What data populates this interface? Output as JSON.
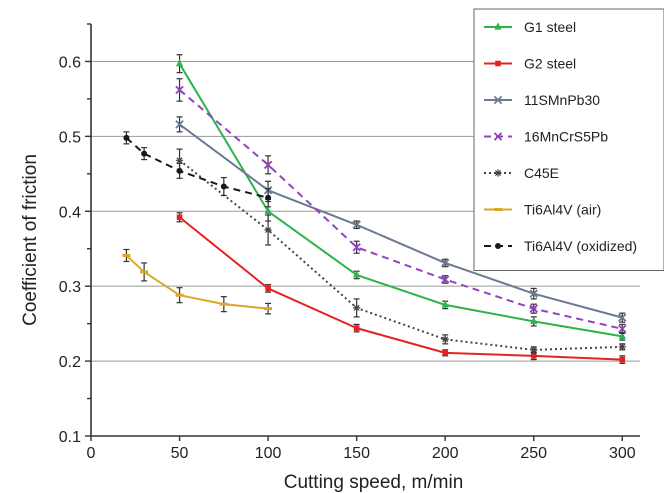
{
  "chart_data": {
    "type": "line",
    "title": "",
    "xlabel": "Cutting speed,  m/min",
    "ylabel": "Coefficient of friction",
    "xlim": [
      0,
      310
    ],
    "ylim": [
      0.1,
      0.65
    ],
    "x_ticks": [
      0,
      50,
      100,
      150,
      200,
      250,
      300
    ],
    "x_tick_labels": [
      "0",
      "50",
      "100",
      "150",
      "200",
      "250",
      "300"
    ],
    "y_ticks": [
      0.1,
      0.2,
      0.3,
      0.4,
      0.5,
      0.6
    ],
    "y_tick_labels": [
      "0.1",
      "0.2",
      "0.3",
      "0.4",
      "0.5",
      "0.6"
    ],
    "grid": "horizontal",
    "legend_position": "top-right",
    "series": [
      {
        "name": "G1 steel",
        "color": "#2db34a",
        "dash": "solid",
        "marker": "triangle",
        "x": [
          50,
          100,
          150,
          200,
          250,
          300
        ],
        "y": [
          0.597,
          0.4,
          0.315,
          0.275,
          0.253,
          0.233
        ],
        "err": [
          0.012,
          0.013,
          0.005,
          0.005,
          0.006,
          0.005
        ]
      },
      {
        "name": "G2 steel",
        "color": "#e52222",
        "dash": "solid",
        "marker": "square",
        "x": [
          50,
          100,
          150,
          200,
          250,
          300
        ],
        "y": [
          0.392,
          0.297,
          0.244,
          0.211,
          0.207,
          0.202
        ],
        "err": [
          0.006,
          0.005,
          0.005,
          0.004,
          0.005,
          0.005
        ]
      },
      {
        "name": "11SMnPb30",
        "color": "#6b7a92",
        "dash": "solid",
        "marker": "x",
        "x": [
          50,
          100,
          150,
          200,
          250,
          300
        ],
        "y": [
          0.516,
          0.428,
          0.382,
          0.331,
          0.29,
          0.258
        ],
        "err": [
          0.01,
          0.012,
          0.005,
          0.005,
          0.007,
          0.006
        ]
      },
      {
        "name": "16MnCrS5Pb",
        "color": "#9542c2",
        "dash": "dash",
        "marker": "x",
        "x": [
          50,
          100,
          150,
          200,
          250,
          300
        ],
        "y": [
          0.562,
          0.462,
          0.352,
          0.309,
          0.27,
          0.243
        ],
        "err": [
          0.015,
          0.012,
          0.008,
          0.005,
          0.006,
          0.006
        ]
      },
      {
        "name": "C45E",
        "color": "#444444",
        "dash": "dot",
        "marker": "star",
        "x": [
          50,
          100,
          150,
          200,
          250,
          300
        ],
        "y": [
          0.468,
          0.375,
          0.271,
          0.229,
          0.215,
          0.219
        ],
        "err": [
          0.015,
          0.02,
          0.012,
          0.006,
          0.004,
          0.004
        ]
      },
      {
        "name": "Ti6Al4V (air)",
        "color": "#d9a827",
        "dash": "solid",
        "marker": "dash",
        "x": [
          20,
          30,
          50,
          75,
          100
        ],
        "y": [
          0.341,
          0.319,
          0.288,
          0.276,
          0.27
        ],
        "err": [
          0.008,
          0.012,
          0.01,
          0.01,
          0.007
        ]
      },
      {
        "name": "Ti6Al4V (oxidized)",
        "color": "#1a1a1a",
        "dash": "dash",
        "marker": "dot",
        "x": [
          20,
          30,
          50,
          75,
          100
        ],
        "y": [
          0.498,
          0.477,
          0.454,
          0.433,
          0.418
        ],
        "err": [
          0.008,
          0.008,
          0.01,
          0.012,
          0.012
        ]
      }
    ]
  }
}
